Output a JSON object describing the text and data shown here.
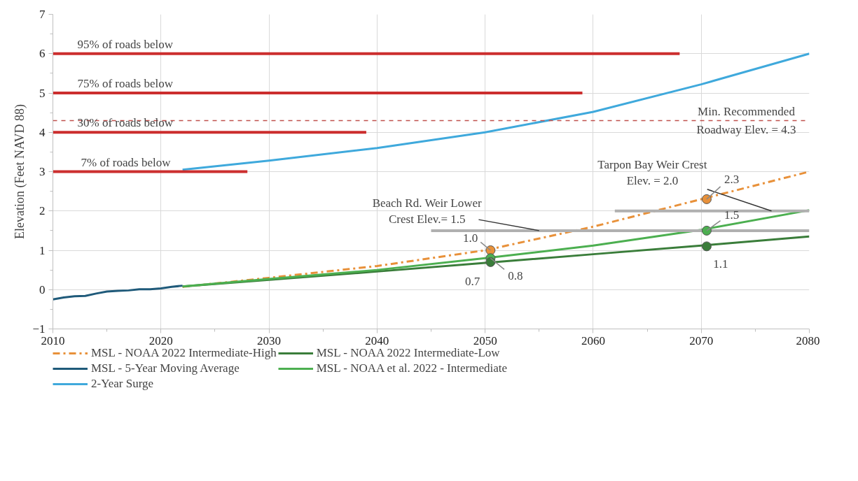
{
  "chart_data": {
    "type": "line",
    "ylabel": "Elevation (Feet NAVD 88)",
    "xlim": [
      2010,
      2080
    ],
    "xticks": [
      2010,
      2020,
      2030,
      2040,
      2050,
      2060,
      2070,
      2080
    ],
    "ylim": [
      -1,
      7
    ],
    "yticks": [
      -1,
      0,
      1,
      2,
      3,
      4,
      5,
      6,
      7
    ],
    "grid": true,
    "legend": "bottom",
    "series": [
      {
        "name": "MSL - NOAA 2022 Intermediate-High",
        "color": "#e8913a",
        "line_style": "dashdot",
        "x": [
          2022,
          2030,
          2040,
          2050,
          2060,
          2070,
          2080
        ],
        "values": [
          0.07,
          0.3,
          0.6,
          1.0,
          1.6,
          2.3,
          3.0
        ]
      },
      {
        "name": "MSL - NOAA 2022 Intermediate-Low",
        "color": "#3a7d3a",
        "x": [
          2022,
          2030,
          2040,
          2050,
          2060,
          2070,
          2080
        ],
        "values": [
          0.08,
          0.25,
          0.46,
          0.68,
          0.9,
          1.12,
          1.35
        ]
      },
      {
        "name": "MSL - 5-Year Moving Average",
        "color": "#1f5a7a",
        "x": [
          2010,
          2011,
          2012,
          2013,
          2014,
          2015,
          2016,
          2017,
          2018,
          2019,
          2020,
          2021,
          2022
        ],
        "values": [
          -0.25,
          -0.2,
          -0.17,
          -0.16,
          -0.1,
          -0.05,
          -0.03,
          -0.02,
          0.01,
          0.01,
          0.03,
          0.07,
          0.1
        ]
      },
      {
        "name": "MSL - NOAA et al. 2022 - Intermediate",
        "color": "#4caf50",
        "x": [
          2022,
          2030,
          2040,
          2050,
          2060,
          2070,
          2080
        ],
        "values": [
          0.08,
          0.27,
          0.5,
          0.8,
          1.12,
          1.52,
          2.02
        ]
      },
      {
        "name": "2-Year Surge",
        "color": "#3fa9dc",
        "x": [
          2022,
          2030,
          2040,
          2050,
          2060,
          2070,
          2080
        ],
        "values": [
          3.05,
          3.28,
          3.6,
          4.0,
          4.52,
          5.22,
          6.0
        ]
      },
      {
        "color": "#cc2e2e",
        "x": [
          2010,
          2068
        ],
        "values": [
          6,
          6
        ]
      },
      {
        "color": "#cc2e2e",
        "x": [
          2010,
          2059
        ],
        "values": [
          5,
          5
        ]
      },
      {
        "color": "#cc2e2e",
        "x": [
          2010,
          2039
        ],
        "values": [
          4,
          4
        ]
      },
      {
        "color": "#cc2e2e",
        "x": [
          2010,
          2028
        ],
        "values": [
          3,
          3
        ]
      },
      {
        "color": "#b0b0b0",
        "x": [
          2045,
          2080
        ],
        "values": [
          1.5,
          1.5
        ]
      },
      {
        "color": "#b0b0b0",
        "x": [
          2062,
          2080
        ],
        "values": [
          2.0,
          2.0
        ]
      },
      {
        "type": "scatter",
        "marker": "circle",
        "x": [
          2050.5,
          2050.5,
          2050.5,
          2070.5,
          2070.5,
          2070.5
        ],
        "values": [
          1.0,
          0.8,
          0.7,
          2.3,
          1.5,
          1.1
        ],
        "colors": [
          "#e8913a",
          "#4caf50",
          "#3a7d3a",
          "#e8913a",
          "#4caf50",
          "#3a7d3a"
        ]
      }
    ],
    "ref_lines": [
      {
        "axis": "y",
        "value": 4.3,
        "label": "Min. Recommended\nRoadway Elev. = 4.3",
        "color": "#c0504d",
        "line_style": "dashed"
      }
    ],
    "annotations": [
      {
        "text": "95%  of roads below",
        "x": 2010,
        "y": 6
      },
      {
        "text": "75%  of roads below",
        "x": 2010,
        "y": 5
      },
      {
        "text": "30%  of roads below",
        "x": 2010,
        "y": 4
      },
      {
        "text": "7% of roads below",
        "x": 2010,
        "y": 3
      },
      {
        "text": "Beach Rd. Weir Lower\nCrest Elev.= 1.5",
        "x": 2055,
        "y": 1.5
      },
      {
        "text": "Tarpon Bay Weir Crest\nElev. = 2.0",
        "x": 2076.5,
        "y": 2.0
      },
      {
        "text": "1.0",
        "x": 2050.5,
        "y": 1.0
      },
      {
        "text": "0.8",
        "x": 2050.5,
        "y": 0.8
      },
      {
        "text": "0.7",
        "x": 2050.5,
        "y": 0.7
      },
      {
        "text": "2.3",
        "x": 2070.5,
        "y": 2.3
      },
      {
        "text": "1.5",
        "x": 2070.5,
        "y": 1.5
      },
      {
        "text": "1.1",
        "x": 2070.5,
        "y": 1.1
      }
    ]
  }
}
